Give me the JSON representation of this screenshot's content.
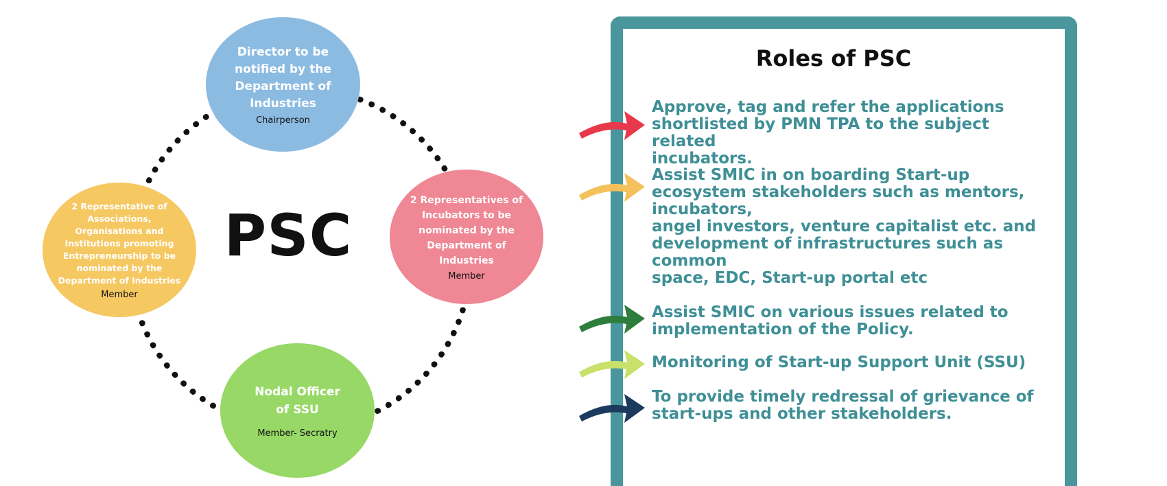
{
  "diagram": {
    "center_label": "PSC",
    "nodes": {
      "top": {
        "title": "Director to be\nnotified by the\nDepartment of\nIndustries",
        "role": "Chairperson",
        "color": "#8cbbe2"
      },
      "right": {
        "title": "2 Representatives of\nIncubators to be\nnominated by the\nDepartment of\nIndustries",
        "role": "Member",
        "color": "#ef8795"
      },
      "left": {
        "title": "2 Representative of\nAssociations,\nOrganisations and\nInstitutions promoting\nEntrepreneurship to be\nnominated by the\nDepartment of Industries",
        "role": "Member",
        "color": "#f5c862"
      },
      "bottom": {
        "title": "Nodal Officer\nof SSU",
        "role": "Member- Secratry",
        "color": "#97d866"
      }
    }
  },
  "roles_panel": {
    "title": "Roles of PSC",
    "border_color": "#4a969d",
    "text_color": "#3f8f96",
    "items": [
      {
        "text": "Approve, tag and refer the applications\nshortlisted by PMN TPA to the subject related\nincubators.",
        "arrow_color": "#e8394c"
      },
      {
        "text": "Assist SMIC in on boarding Start-up\necosystem stakeholders such as mentors,\nincubators,\nangel investors, venture capitalist etc. and\ndevelopment of infrastructures such as\ncommon\nspace, EDC, Start-up portal etc",
        "arrow_color": "#f5c15c"
      },
      {
        "text": "Assist SMIC on various issues related to\nimplementation of the Policy.",
        "arrow_color": "#2f7d3a"
      },
      {
        "text": "Monitoring of Start-up Support Unit (SSU)",
        "arrow_color": "#c9e06a"
      },
      {
        "text": "To provide timely redressal of grievance of\nstart-ups and other stakeholders.",
        "arrow_color": "#1c3a5e"
      }
    ]
  }
}
